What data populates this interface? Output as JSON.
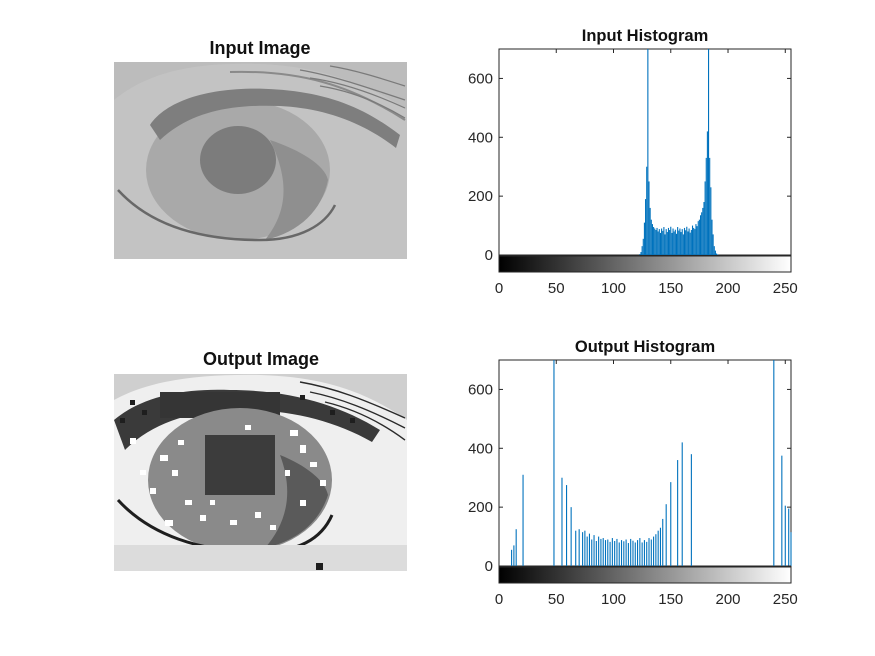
{
  "figure": {
    "input_image": {
      "title": "Input Image",
      "colors": {
        "background": "#c3c3c3",
        "iris": "#a9a9a9",
        "pupil": "#7c7c7c",
        "lashes": "#7a7a7a",
        "lid_line": "#686868"
      }
    },
    "output_image": {
      "title": "Output Image",
      "colors": {
        "background": "#efefef",
        "skin": "#cfcfcf",
        "iris": "#8a8a8a",
        "pupil": "#3c3c3c",
        "dark": "#1e1e1e",
        "speckle": "#ffffff"
      }
    }
  },
  "chart_data": [
    {
      "type": "bar",
      "title": "Input Histogram",
      "xlabel": "",
      "ylabel": "",
      "xlim": [
        0,
        255
      ],
      "ylim": [
        0,
        700
      ],
      "xticks": [
        0,
        50,
        100,
        150,
        200,
        250
      ],
      "yticks": [
        0,
        200,
        400,
        600
      ],
      "grid": false,
      "colorbar": "grayscale 0–255 below x-axis",
      "bar_color": "#0072bd",
      "x": [
        123,
        124,
        125,
        126,
        127,
        128,
        129,
        130,
        131,
        132,
        133,
        134,
        135,
        136,
        137,
        138,
        139,
        140,
        141,
        142,
        143,
        144,
        145,
        146,
        147,
        148,
        149,
        150,
        151,
        152,
        153,
        154,
        155,
        156,
        157,
        158,
        159,
        160,
        161,
        162,
        163,
        164,
        165,
        166,
        167,
        168,
        169,
        170,
        171,
        172,
        173,
        174,
        175,
        176,
        177,
        178,
        179,
        180,
        181,
        182,
        183,
        184,
        185,
        186,
        187,
        188,
        189,
        190,
        191
      ],
      "values": [
        3,
        10,
        30,
        55,
        110,
        190,
        300,
        700,
        250,
        160,
        120,
        105,
        95,
        90,
        85,
        92,
        80,
        88,
        75,
        90,
        82,
        95,
        70,
        88,
        78,
        92,
        85,
        96,
        75,
        90,
        80,
        86,
        72,
        95,
        83,
        90,
        78,
        88,
        70,
        92,
        84,
        96,
        80,
        90,
        76,
        85,
        100,
        92,
        88,
        105,
        98,
        115,
        120,
        135,
        145,
        160,
        180,
        250,
        330,
        420,
        700,
        330,
        230,
        120,
        70,
        30,
        15,
        5,
        2
      ]
    },
    {
      "type": "bar",
      "title": "Output Histogram",
      "xlabel": "",
      "ylabel": "",
      "xlim": [
        0,
        255
      ],
      "ylim": [
        0,
        700
      ],
      "xticks": [
        0,
        50,
        100,
        150,
        200,
        250
      ],
      "yticks": [
        0,
        200,
        400,
        600
      ],
      "grid": false,
      "colorbar": "grayscale 0–255 below x-axis",
      "bar_color": "#0072bd",
      "x": [
        11,
        13,
        15,
        21,
        48,
        55,
        59,
        63,
        67,
        70,
        73,
        75,
        77,
        79,
        81,
        83,
        85,
        87,
        89,
        91,
        93,
        95,
        97,
        99,
        101,
        103,
        105,
        107,
        109,
        111,
        113,
        115,
        117,
        119,
        121,
        123,
        125,
        127,
        129,
        131,
        133,
        135,
        137,
        139,
        141,
        143,
        146,
        150,
        156,
        160,
        168,
        240,
        247,
        250,
        253,
        255
      ],
      "values": [
        55,
        70,
        125,
        310,
        700,
        300,
        275,
        200,
        120,
        125,
        115,
        120,
        100,
        110,
        90,
        105,
        85,
        100,
        92,
        95,
        88,
        90,
        82,
        95,
        85,
        92,
        80,
        88,
        84,
        90,
        78,
        92,
        86,
        80,
        88,
        95,
        80,
        88,
        82,
        95,
        90,
        100,
        108,
        120,
        130,
        160,
        210,
        285,
        360,
        420,
        380,
        700,
        375,
        205,
        195,
        115
      ]
    }
  ]
}
